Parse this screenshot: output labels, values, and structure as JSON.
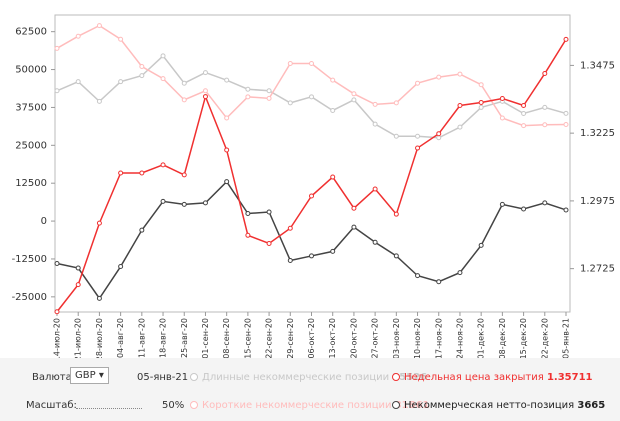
{
  "chart_data": {
    "type": "line",
    "categories": [
      "14-июл-20",
      "21-июл-20",
      "28-июл-20",
      "04-авг-20",
      "11-авг-20",
      "18-авг-20",
      "25-авг-20",
      "01-сен-20",
      "08-сен-20",
      "15-сен-20",
      "22-сен-20",
      "29-сен-20",
      "06-окт-20",
      "13-окт-20",
      "20-окт-20",
      "27-окт-20",
      "03-ноя-20",
      "10-ноя-20",
      "17-ноя-20",
      "24-ноя-20",
      "01-дек-20",
      "08-дек-20",
      "15-дек-20",
      "22-дек-20",
      "05-янв-21"
    ],
    "series": [
      {
        "name": "Длинные некоммерческие позиции",
        "color": "#c8c8c8",
        "latest_value": 35526,
        "values": [
          43000,
          46000,
          39500,
          46000,
          48000,
          54500,
          45500,
          49000,
          46500,
          43500,
          43000,
          39000,
          41000,
          36500,
          40000,
          32000,
          28000,
          28000,
          27500,
          31000,
          37500,
          39500,
          35500,
          37500,
          35526
        ]
      },
      {
        "name": "Короткие некоммерческие позиции",
        "color": "#ffbcbc",
        "latest_value": 31861,
        "values": [
          57000,
          61000,
          64500,
          60000,
          51000,
          47000,
          40000,
          43000,
          34000,
          41000,
          40500,
          52000,
          52000,
          46500,
          42000,
          38500,
          39000,
          45500,
          47500,
          48500,
          45000,
          34000,
          31500,
          31800,
          31861
        ]
      },
      {
        "name": "Некоммерческая нетто-позиция",
        "color": "#444444",
        "latest_value": 3665,
        "values": [
          -14000,
          -15500,
          -25500,
          -15000,
          -3000,
          6500,
          5500,
          6000,
          13000,
          2500,
          3000,
          -13000,
          -11500,
          -10000,
          -2000,
          -7000,
          -11500,
          -18000,
          -20000,
          -17000,
          -8000,
          5500,
          4000,
          6000,
          3665
        ]
      },
      {
        "name": "Недельная цена закрытия",
        "color": "#f03030",
        "axis": "y2",
        "latest_value": 1.35711,
        "values": [
          1.2566,
          1.2666,
          1.2893,
          1.3078,
          1.3078,
          1.3108,
          1.3071,
          1.336,
          1.3163,
          1.2848,
          1.2818,
          1.2874,
          1.2993,
          1.3063,
          1.2948,
          1.3019,
          1.2926,
          1.317,
          1.3223,
          1.3327,
          1.3338,
          1.3353,
          1.3327,
          1.3445,
          1.35711
        ]
      }
    ],
    "ylim": [
      -30000,
      68000
    ],
    "yticks": [
      -25000,
      -12500,
      0,
      12500,
      25000,
      37500,
      50000,
      62500
    ],
    "y2lim": [
      1.2565,
      1.3661
    ],
    "y2ticks": [
      1.2725,
      1.2975,
      1.3225,
      1.3475
    ]
  },
  "controls": {
    "currency_label": "Валюта:",
    "currency": "GBP",
    "date": "05-янв-21",
    "scale_label": "Масштаб:",
    "scale": "50%"
  }
}
